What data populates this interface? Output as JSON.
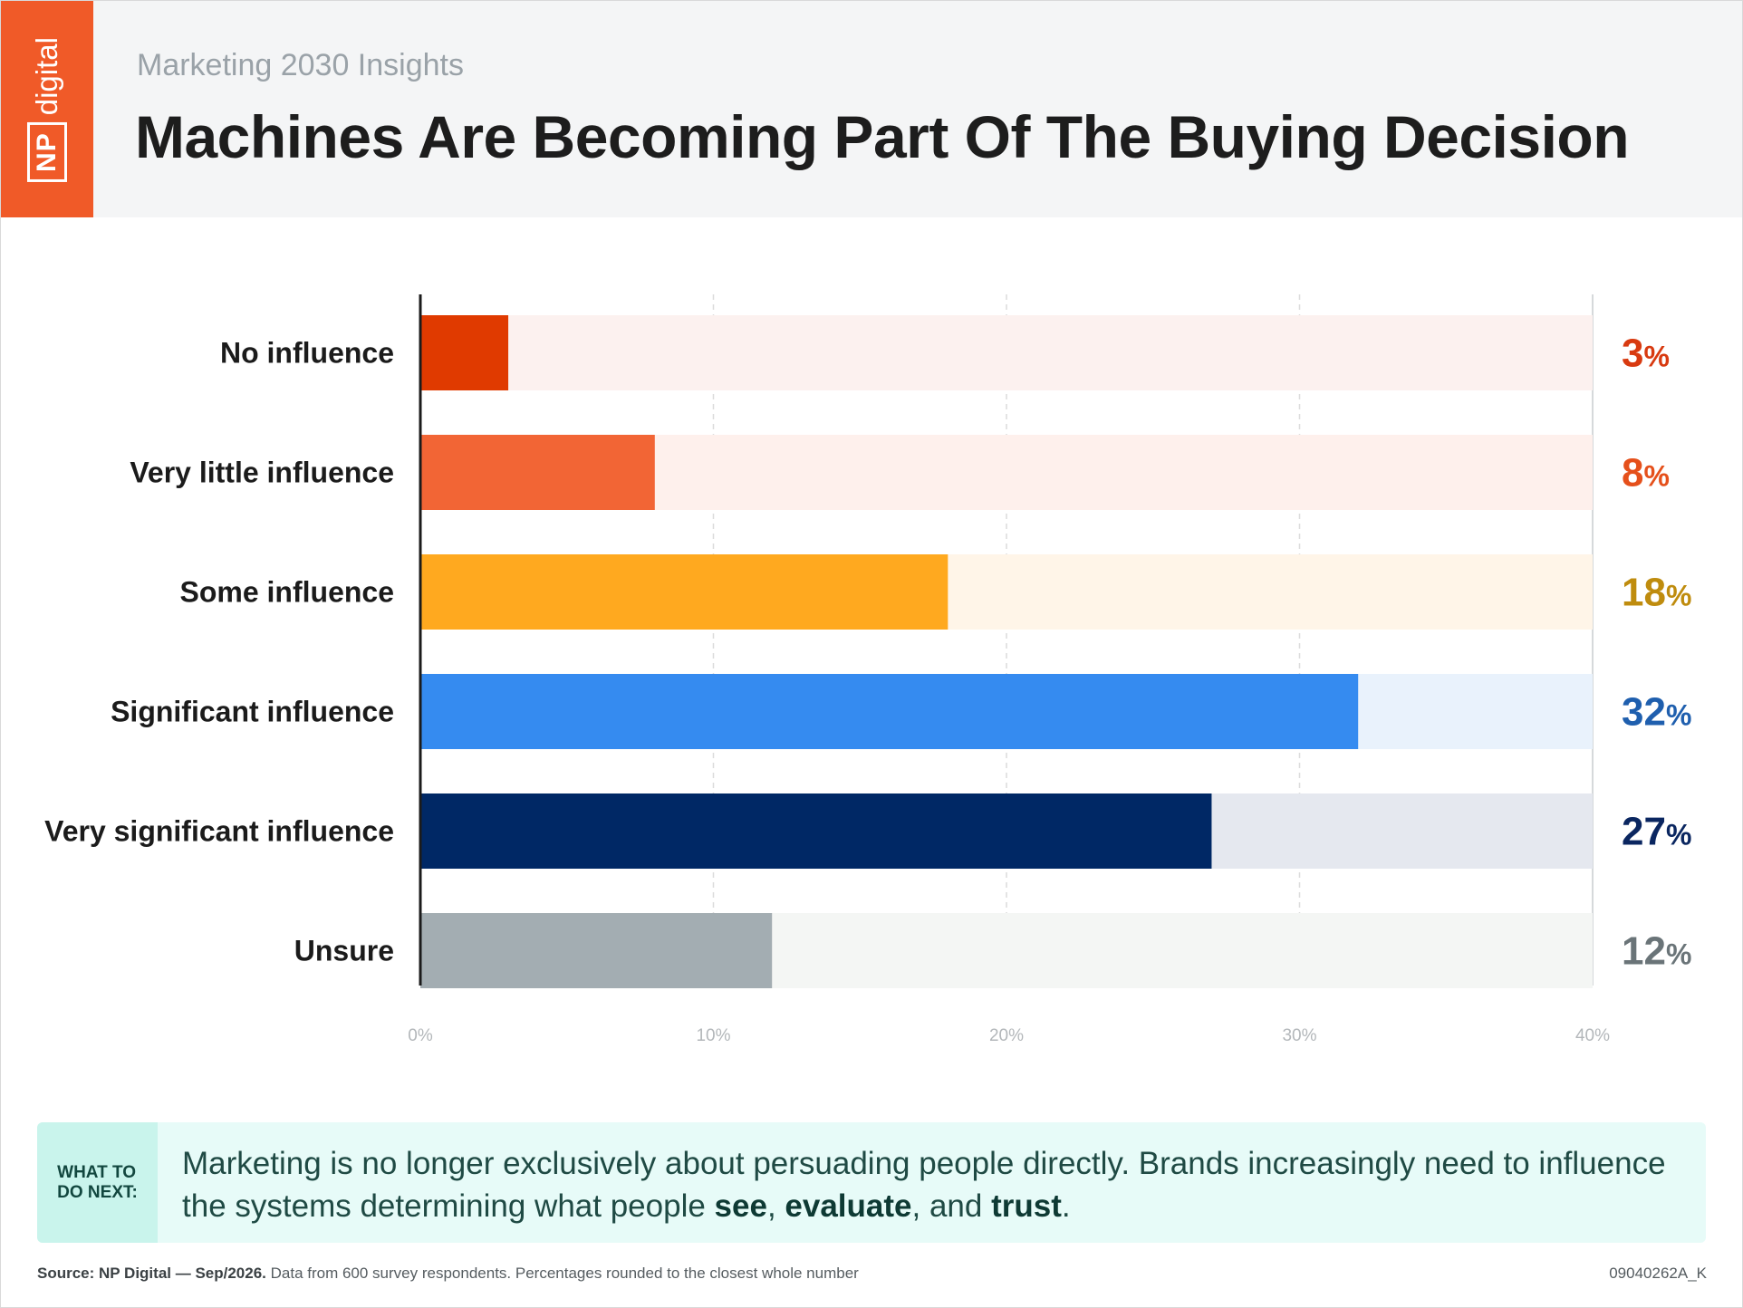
{
  "brand": {
    "logo_np": "NP",
    "logo_digital": "digital",
    "color": "#f05a28"
  },
  "header": {
    "subtitle": "Marketing 2030 Insights",
    "title": "Machines Are Becoming Part Of The Buying Decision"
  },
  "chart_data": {
    "type": "bar",
    "orientation": "horizontal",
    "categories": [
      "No influence",
      "Very little influence",
      "Some influence",
      "Significant influence",
      "Very significant influence",
      "Unsure"
    ],
    "values": [
      3,
      8,
      18,
      32,
      27,
      12
    ],
    "value_labels": [
      "3",
      "8",
      "18",
      "32",
      "27",
      "12"
    ],
    "value_suffix": "%",
    "xlim": [
      0,
      40
    ],
    "xticks": [
      0,
      10,
      20,
      30,
      40
    ],
    "xtick_labels": [
      "0%",
      "10%",
      "20%",
      "30%",
      "40%"
    ],
    "grid": true,
    "bar_colors": [
      "#e03a00",
      "#f26535",
      "#ffa91f",
      "#358bf0",
      "#002865",
      "#a3adb2"
    ],
    "track_colors": [
      "#fcf1ef",
      "#fef0ec",
      "#fff5e8",
      "#e9f2fc",
      "#e5e8ef",
      "#f4f6f4"
    ],
    "label_colors": [
      "#d83a10",
      "#e5501b",
      "#bf8c0e",
      "#1f5fae",
      "#0a2660",
      "#6a7478"
    ]
  },
  "callout": {
    "tag_line1": "WHAT TO",
    "tag_line2": "DO NEXT:",
    "text_part1": "Marketing is no longer exclusively about persuading people directly. Brands increasingly need to influence the systems determining what people ",
    "see": "see",
    "sep1": ", ",
    "evaluate": "evaluate",
    "sep2": ", and ",
    "trust": "trust",
    "end": "."
  },
  "footer": {
    "source_bold": "Source: NP Digital — Sep/2026.",
    "source_rest": " Data from 600 survey respondents. Percentages rounded to the closest whole number",
    "code": "09040262A_K"
  }
}
